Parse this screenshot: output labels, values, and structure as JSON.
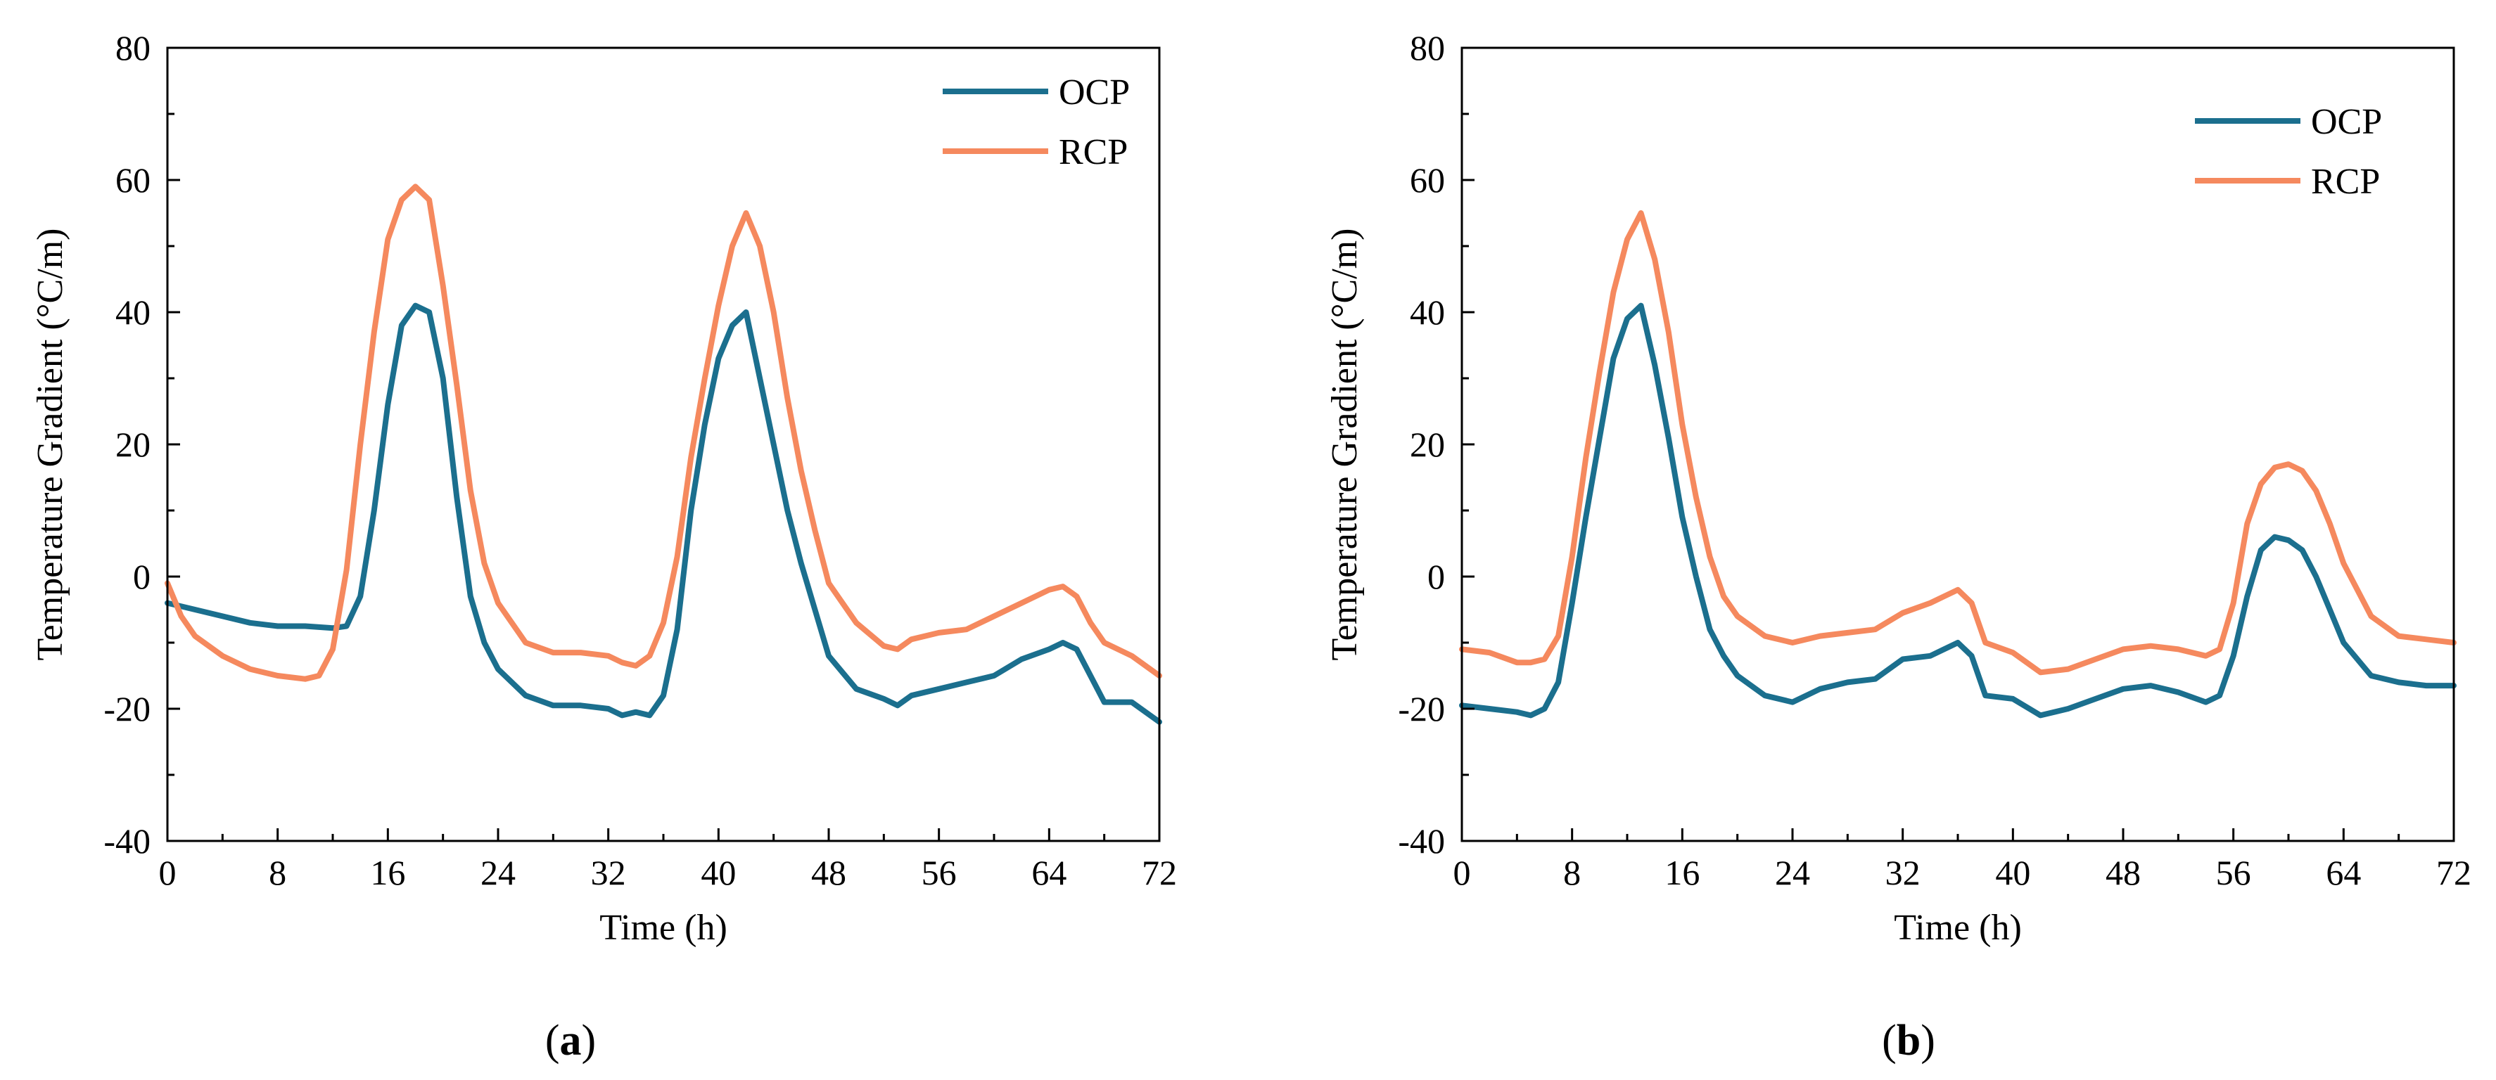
{
  "chart_data": [
    {
      "type": "line",
      "panel_label": "a",
      "xlabel": "Time (h)",
      "ylabel": "Temperature Gradient (°C/m)",
      "xlim": [
        0,
        72
      ],
      "ylim": [
        -40,
        80
      ],
      "xticks": [
        0,
        8,
        16,
        24,
        32,
        40,
        48,
        56,
        64,
        72
      ],
      "yticks": [
        -40,
        -20,
        0,
        20,
        40,
        60,
        80
      ],
      "legend_position": "top-right",
      "grid": false,
      "series": [
        {
          "name": "OCP",
          "color": "#1b6f8e",
          "x": [
            0,
            2,
            4,
            6,
            8,
            10,
            12,
            13,
            14,
            15,
            16,
            17,
            18,
            19,
            20,
            21,
            22,
            23,
            24,
            26,
            28,
            30,
            32,
            33,
            34,
            35,
            36,
            37,
            38,
            39,
            40,
            41,
            42,
            43,
            44,
            45,
            46,
            47,
            48,
            50,
            52,
            53,
            54,
            56,
            58,
            60,
            62,
            64,
            65,
            66,
            68,
            70,
            72
          ],
          "y": [
            -4,
            -5,
            -6,
            -7,
            -7.5,
            -7.5,
            -7.8,
            -7.5,
            -3,
            10,
            26,
            38,
            41,
            40,
            30,
            12,
            -3,
            -10,
            -14,
            -18,
            -19.5,
            -19.5,
            -20,
            -21,
            -20.5,
            -21,
            -18,
            -8,
            10,
            23,
            33,
            38,
            40,
            30,
            20,
            10,
            2,
            -5,
            -12,
            -17,
            -18.5,
            -19.5,
            -18,
            -17,
            -16,
            -15,
            -12.5,
            -11,
            -10,
            -11,
            -19,
            -19,
            -22
          ]
        },
        {
          "name": "RCP",
          "color": "#f5895e",
          "x": [
            0,
            1,
            2,
            4,
            6,
            8,
            10,
            11,
            12,
            13,
            14,
            15,
            16,
            17,
            18,
            19,
            20,
            21,
            22,
            23,
            24,
            26,
            28,
            30,
            32,
            33,
            34,
            35,
            36,
            37,
            38,
            39,
            40,
            41,
            42,
            43,
            44,
            45,
            46,
            47,
            48,
            50,
            52,
            53,
            54,
            56,
            58,
            60,
            62,
            64,
            65,
            66,
            67,
            68,
            70,
            72
          ],
          "y": [
            -1,
            -6,
            -9,
            -12,
            -14,
            -15,
            -15.5,
            -15,
            -11,
            1,
            20,
            37,
            51,
            57,
            59,
            57,
            44,
            29,
            13,
            2,
            -4,
            -10,
            -11.5,
            -11.5,
            -12,
            -13,
            -13.5,
            -12,
            -7,
            3,
            18,
            30,
            41,
            50,
            55,
            50,
            40,
            27,
            16,
            7,
            -1,
            -7,
            -10.5,
            -11,
            -9.5,
            -8.5,
            -8,
            -6,
            -4,
            -2,
            -1.5,
            -3,
            -7,
            -10,
            -12,
            -15
          ]
        }
      ]
    },
    {
      "type": "line",
      "panel_label": "b",
      "xlabel": "Time (h)",
      "ylabel": "Temperature Gradient (°C/m)",
      "xlim": [
        0,
        72
      ],
      "ylim": [
        -40,
        80
      ],
      "xticks": [
        0,
        8,
        16,
        24,
        32,
        40,
        48,
        56,
        64,
        72
      ],
      "yticks": [
        -40,
        -20,
        0,
        20,
        40,
        60,
        80
      ],
      "legend_position": "top-right",
      "grid": false,
      "series": [
        {
          "name": "OCP",
          "color": "#1b6f8e",
          "x": [
            0,
            2,
            4,
            5,
            6,
            7,
            8,
            9,
            10,
            11,
            12,
            13,
            14,
            15,
            16,
            17,
            18,
            19,
            20,
            22,
            24,
            26,
            28,
            30,
            32,
            34,
            35,
            36,
            37,
            38,
            40,
            42,
            44,
            46,
            48,
            50,
            52,
            54,
            55,
            56,
            57,
            58,
            59,
            60,
            61,
            62,
            63,
            64,
            66,
            68,
            70,
            72
          ],
          "y": [
            -19.5,
            -20,
            -20.5,
            -21,
            -20,
            -16,
            -4,
            9,
            21,
            33,
            39,
            41,
            32,
            21,
            9,
            0,
            -8,
            -12,
            -15,
            -18,
            -19,
            -17,
            -16,
            -15.5,
            -12.5,
            -12,
            -11,
            -10,
            -12,
            -18,
            -18.5,
            -21,
            -20,
            -18.5,
            -17,
            -16.5,
            -17.5,
            -19,
            -18,
            -12,
            -3,
            4,
            6,
            5.5,
            4,
            0,
            -5,
            -10,
            -15,
            -16,
            -16.5,
            -16.5
          ]
        },
        {
          "name": "RCP",
          "color": "#f5895e",
          "x": [
            0,
            2,
            4,
            5,
            6,
            7,
            8,
            9,
            10,
            11,
            12,
            13,
            14,
            15,
            16,
            17,
            18,
            19,
            20,
            22,
            24,
            26,
            28,
            30,
            32,
            34,
            35,
            36,
            37,
            38,
            40,
            42,
            44,
            46,
            48,
            50,
            52,
            54,
            55,
            56,
            57,
            58,
            59,
            60,
            61,
            62,
            63,
            64,
            66,
            68,
            70,
            72
          ],
          "y": [
            -11,
            -11.5,
            -13,
            -13,
            -12.5,
            -9,
            3,
            18,
            31,
            43,
            51,
            55,
            48,
            37,
            23,
            12,
            3,
            -3,
            -6,
            -9,
            -10,
            -9,
            -8.5,
            -8,
            -5.5,
            -4,
            -3,
            -2,
            -4,
            -10,
            -11.5,
            -14.5,
            -14,
            -12.5,
            -11,
            -10.5,
            -11,
            -12,
            -11,
            -4,
            8,
            14,
            16.5,
            17,
            16,
            13,
            8,
            2,
            -6,
            -9,
            -9.5,
            -10
          ]
        }
      ]
    }
  ]
}
